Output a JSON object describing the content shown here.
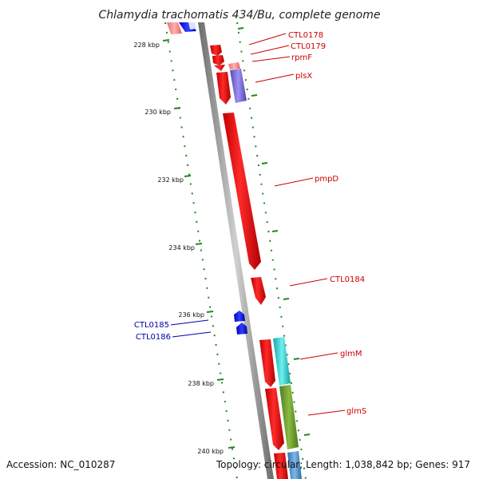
{
  "title": "Chlamydia trachomatis 434/Bu, complete genome",
  "footer": {
    "accession": "Accession: NC_010287",
    "summary": "Topology: circular; Length: 1,038,842 bp; Genes: 917"
  },
  "axis": {
    "unit": "kbp",
    "ticks": [
      "228 kbp",
      "230 kbp",
      "232 kbp",
      "234 kbp",
      "236 kbp",
      "238 kbp",
      "240 kbp"
    ]
  },
  "genes": {
    "CTL0178": "CTL0178",
    "CTL0179": "CTL0179",
    "rpmF": "rpmF",
    "plsX": "plsX",
    "pmpD": "pmpD",
    "CTL0184": "CTL0184",
    "CTL0185": "CTL0185",
    "CTL0186": "CTL0186",
    "glmM": "glmM",
    "glmS": "glmS"
  },
  "colors": {
    "forward_gene": "#ee0000",
    "reverse_gene": "#0000ee",
    "forward_label": "#cc0000",
    "reverse_label": "#0000aa",
    "backbone": "#888888",
    "tick_marks": "#228822",
    "plsX_cog": "#6f5fd0",
    "glmM_cog": "#20c8c8",
    "glmS_cog": "#6a9a2a",
    "tail_cog": "#4a8ac0"
  }
}
